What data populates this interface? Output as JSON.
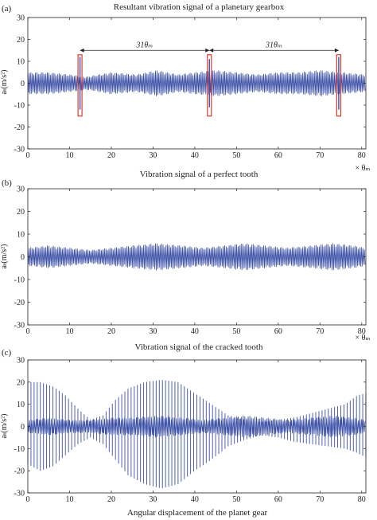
{
  "figure": {
    "xlabel": "Angular displacement of the planet gear",
    "series_color": "#3b4fa6",
    "highlight_color": "#e23a2e"
  },
  "chart_data": [
    {
      "type": "line",
      "panel_label": "(a)",
      "title": "Resultant vibration signal of a planetary gearbox",
      "ylabel": "aₜ(m/s²)",
      "x_unit_label": "× θₘ",
      "xlim": [
        0,
        81
      ],
      "ylim": [
        -30,
        30
      ],
      "xticks": [
        0,
        10,
        20,
        30,
        40,
        50,
        60,
        70,
        80
      ],
      "yticks": [
        -30,
        -20,
        -10,
        0,
        10,
        20,
        30
      ],
      "series": [
        {
          "style": "dense oscillation",
          "envelope_x": [
            0,
            5,
            10,
            14,
            20,
            26,
            31,
            36,
            40,
            45,
            50,
            55,
            60,
            65,
            70,
            75,
            81
          ],
          "envelope_amplitude": [
            5,
            5,
            4,
            3,
            5,
            4,
            6,
            4,
            5,
            6,
            5,
            4,
            5,
            5,
            6,
            5,
            4
          ],
          "impacts": [
            {
              "x": 12.5,
              "amplitude": 12
            },
            {
              "x": 43.5,
              "amplitude": 11
            },
            {
              "x": 74.5,
              "amplitude": 12
            }
          ]
        }
      ],
      "highlight_boxes_x": [
        12.5,
        43.5,
        74.5
      ],
      "highlight_box_y": [
        -15,
        13
      ],
      "annotations": [
        {
          "text": "31θₘ",
          "x_from": 12.5,
          "x_to": 43.5,
          "y": 15
        },
        {
          "text": "31θₘ",
          "x_from": 43.5,
          "x_to": 74.5,
          "y": 15
        }
      ]
    },
    {
      "type": "line",
      "panel_label": "(b)",
      "title": "Vibration signal of a perfect tooth",
      "ylabel": "aₜ(m/s²)",
      "x_unit_label": "× θₘ",
      "xlim": [
        0,
        81
      ],
      "ylim": [
        -30,
        30
      ],
      "xticks": [
        0,
        10,
        20,
        30,
        40,
        50,
        60,
        70,
        80
      ],
      "yticks": [
        -30,
        -20,
        -10,
        0,
        10,
        20,
        30
      ],
      "series": [
        {
          "style": "dense oscillation",
          "envelope_x": [
            0,
            5,
            10,
            15,
            20,
            25,
            31,
            37,
            42,
            47,
            52,
            57,
            62,
            68,
            73,
            78,
            81
          ],
          "envelope_amplitude": [
            4,
            5,
            4,
            3,
            4,
            5,
            6,
            5,
            4,
            5,
            6,
            5,
            4,
            5,
            6,
            5,
            4
          ],
          "impacts": []
        }
      ]
    },
    {
      "type": "line",
      "panel_label": "(c)",
      "title": "Vibration signal of the cracked tooth",
      "ylabel": "aₜ(m/s²)",
      "x_unit_label": "× θₘ",
      "xlim": [
        0,
        81
      ],
      "ylim": [
        -30,
        30
      ],
      "xticks": [
        0,
        10,
        20,
        30,
        40,
        50,
        60,
        70,
        80
      ],
      "yticks": [
        -30,
        -20,
        -10,
        0,
        10,
        20,
        30
      ],
      "series": [
        {
          "style": "spikes with envelope",
          "spike_x": [
            0,
            81
          ],
          "spike_spacing": 0.75,
          "spike_envelope_x": [
            0,
            3,
            6,
            9,
            12,
            15,
            18,
            21,
            24,
            28,
            32,
            36,
            40,
            44,
            48,
            52,
            56,
            60,
            64,
            68,
            72,
            76,
            79,
            81
          ],
          "spike_top": [
            20,
            20,
            18,
            14,
            8,
            3,
            5,
            12,
            17,
            20,
            21,
            20,
            15,
            10,
            5,
            3,
            2,
            3,
            4,
            6,
            8,
            10,
            14,
            15
          ],
          "spike_bottom": [
            -17,
            -20,
            -18,
            -13,
            -8,
            -5,
            -8,
            -15,
            -22,
            -26,
            -28,
            -26,
            -20,
            -15,
            -9,
            -6,
            -4,
            -5,
            -7,
            -8,
            -9,
            -10,
            -12,
            -14
          ],
          "core_envelope_x": [
            0,
            5,
            10,
            15,
            20,
            25,
            31,
            37,
            42,
            47,
            52,
            57,
            62,
            68,
            73,
            78,
            81
          ],
          "core_amplitude": [
            3,
            4,
            3,
            3,
            4,
            4,
            5,
            4,
            3,
            4,
            5,
            4,
            3,
            4,
            5,
            4,
            3
          ]
        }
      ]
    }
  ]
}
